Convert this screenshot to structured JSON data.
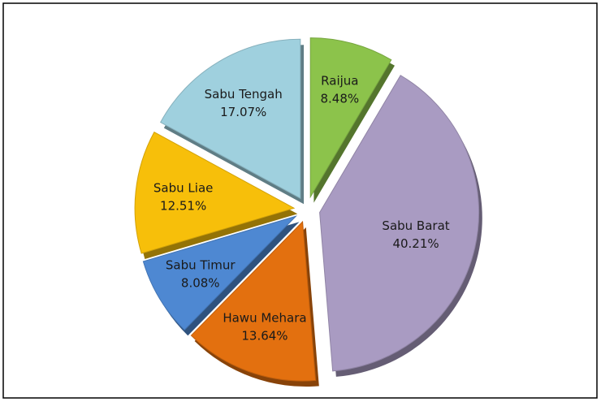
{
  "chart_data": {
    "type": "pie",
    "categories": [
      "Raijua",
      "Sabu Barat",
      "Hawu Mehara",
      "Sabu Timur",
      "Sabu Liae",
      "Sabu Tengah"
    ],
    "values": [
      8.48,
      40.21,
      13.64,
      8.08,
      12.51,
      17.07
    ],
    "value_labels": [
      "8.48%",
      "40.21%",
      "13.64%",
      "8.08%",
      "12.51%",
      "17.07%"
    ],
    "colors": [
      "#8cc34b",
      "#a99bc2",
      "#e3700f",
      "#4e88d2",
      "#f7bf0a",
      "#9fd0de"
    ]
  }
}
